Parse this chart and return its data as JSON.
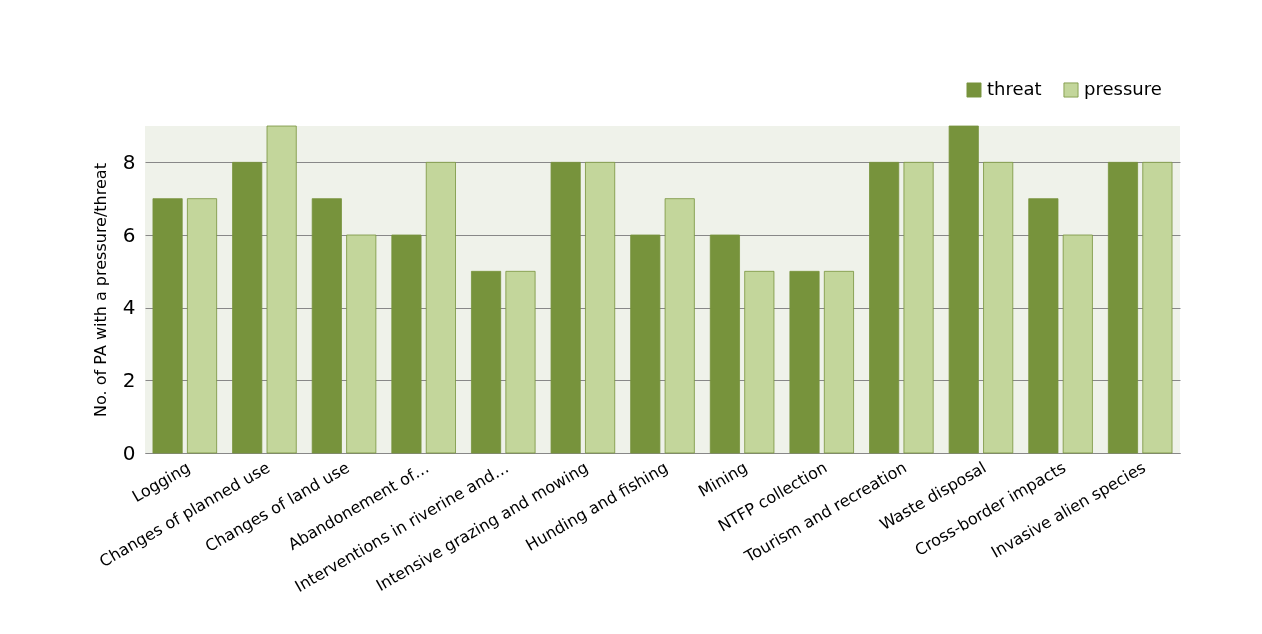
{
  "chart_data": {
    "type": "bar",
    "ylabel": "No. of PA with a pressure/threat",
    "categories": [
      "Logging",
      "Changes of planned use",
      "Changes of land use",
      "Abandonement of…",
      "Interventions in riverine and…",
      "Intensive grazing and mowing",
      "Hunding and fishing",
      "Mining",
      "NTFP collection",
      "Tourism and recreation",
      "Waste disposal",
      "Cross-border impacts",
      "Invasive alien species"
    ],
    "series": [
      {
        "name": "threat",
        "color": "#77933c",
        "values": [
          7,
          8,
          7,
          6,
          5,
          8,
          6,
          6,
          5,
          8,
          9,
          7,
          8
        ]
      },
      {
        "name": "pressure",
        "color": "#c3d69b",
        "values": [
          7,
          9,
          6,
          8,
          5,
          8,
          7,
          5,
          5,
          8,
          8,
          6,
          8
        ]
      }
    ],
    "ylim": [
      0,
      9
    ],
    "yticks": [
      0,
      2,
      4,
      6,
      8
    ],
    "grid": "y",
    "legend": "top right"
  }
}
